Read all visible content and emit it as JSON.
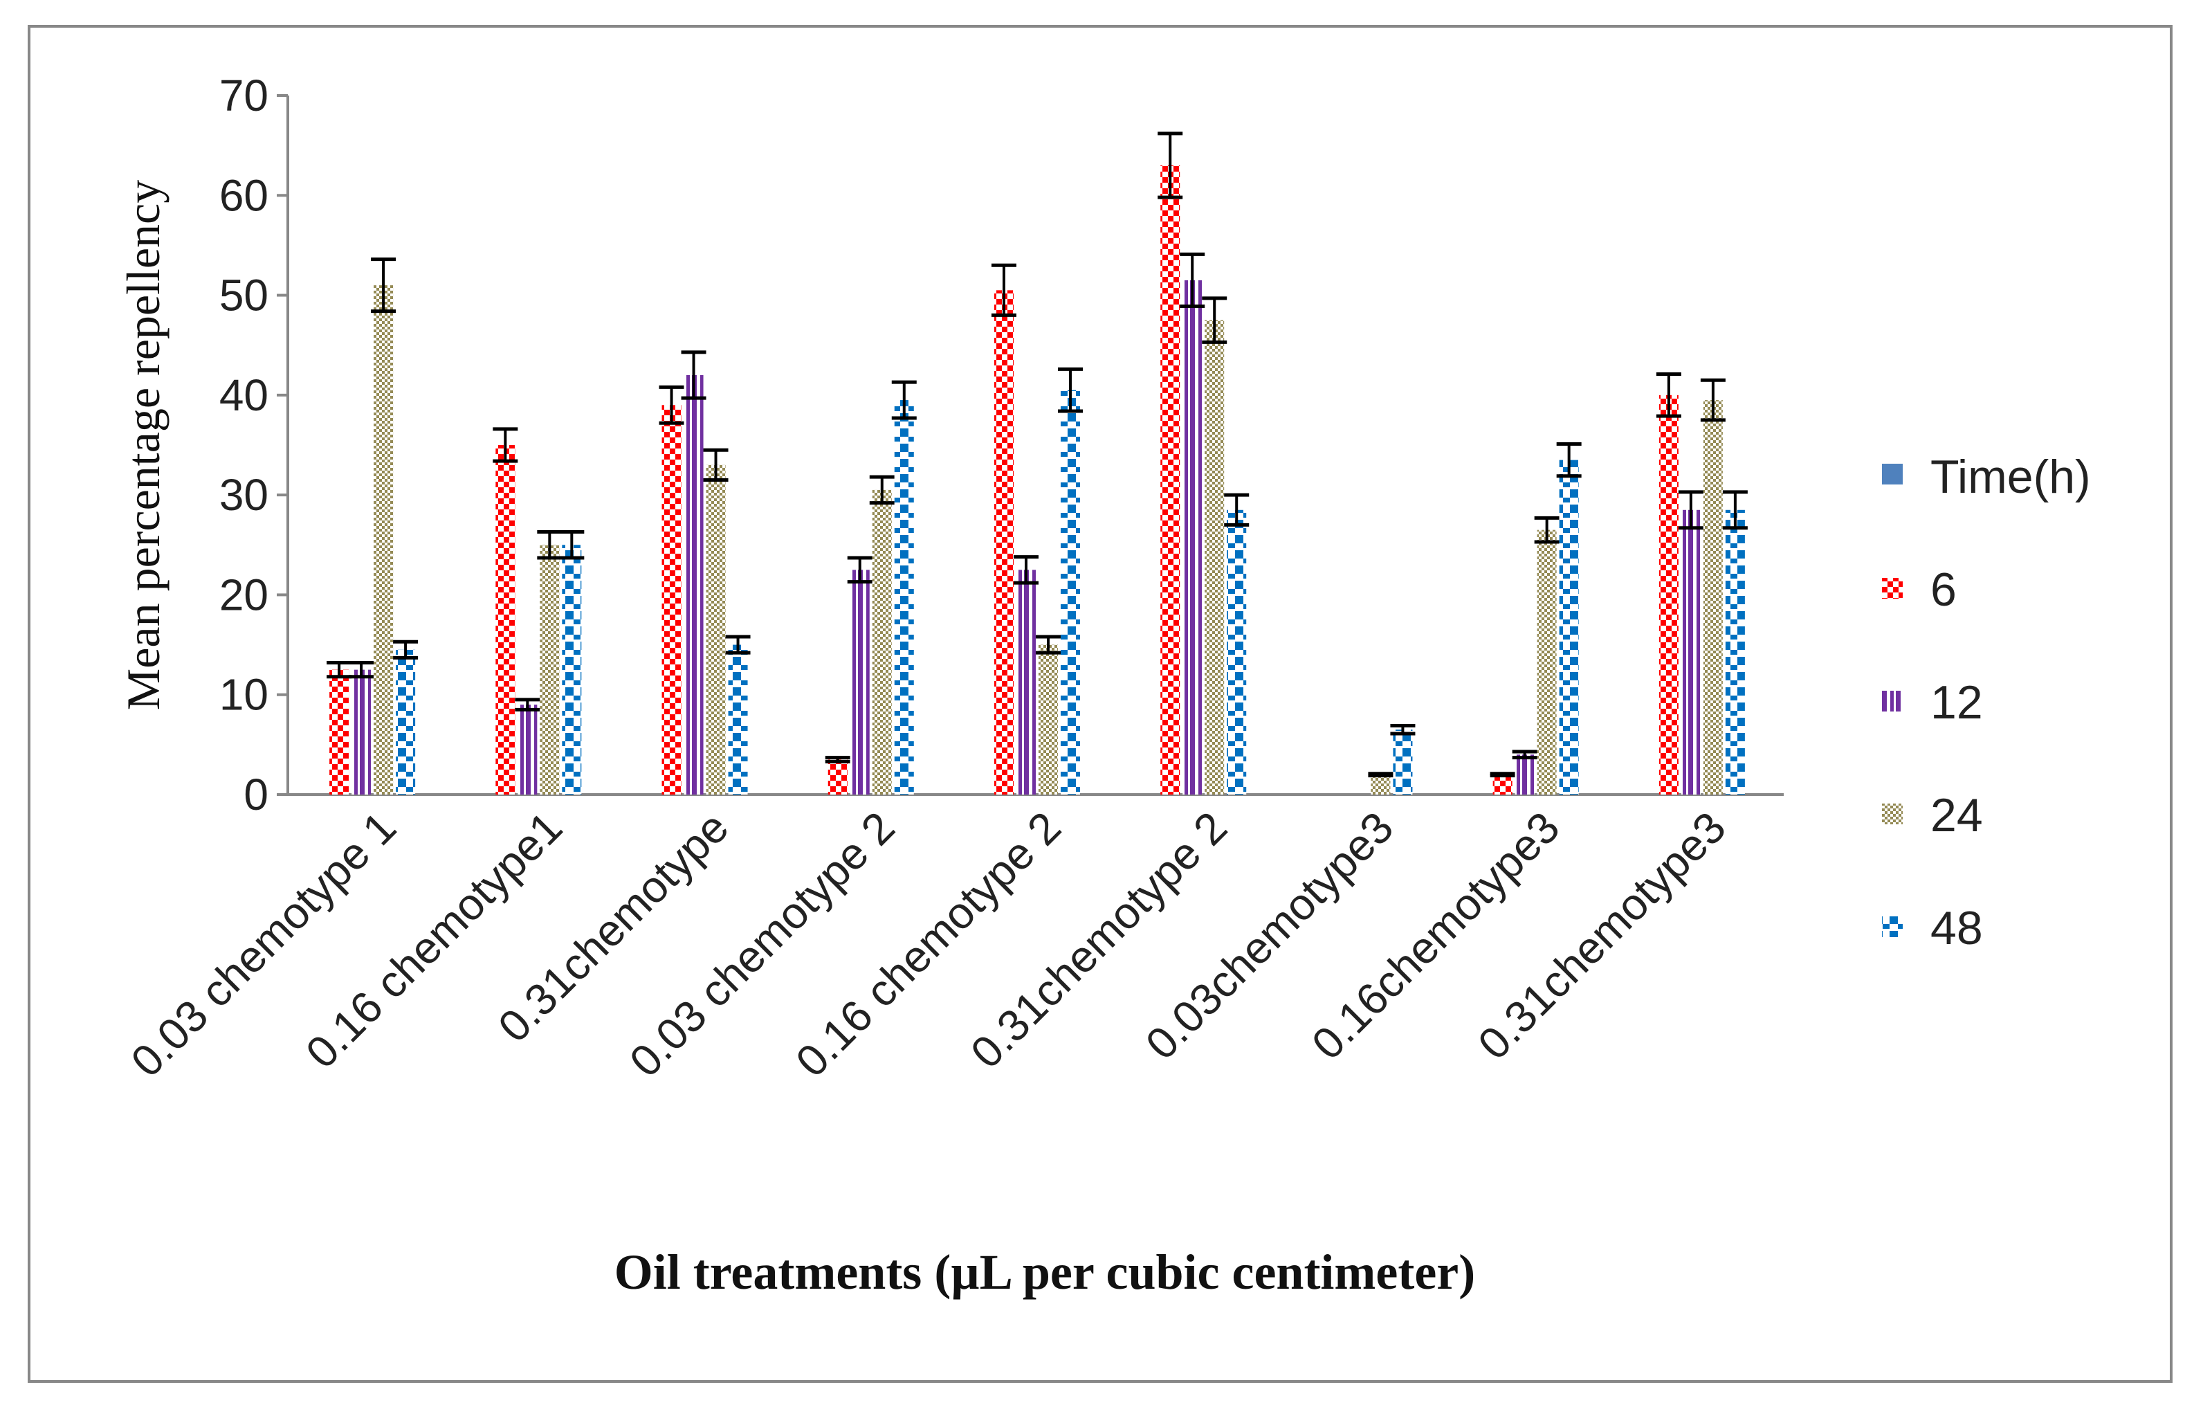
{
  "chart_data": {
    "type": "bar",
    "title": "",
    "xlabel": "Oil treatments (µL per cubic centimeter)",
    "ylabel": "Mean percentage repellency",
    "ylim": [
      0,
      70
    ],
    "yticks": [
      "0",
      "10",
      "20",
      "30",
      "40",
      "50",
      "60",
      "70"
    ],
    "grid": false,
    "legend_position": "right",
    "legend_title": "Time(h)",
    "categories": [
      "0.03 chemotype 1",
      "0.16 chemotype1",
      "0.31chemotype",
      "0.03 chemotype 2",
      "0.16 chemotype 2",
      "0.31chemotype 2",
      "0.03chemotype3",
      "0.16chemotype3",
      "0.31chemotype3"
    ],
    "series": [
      {
        "name": "6",
        "color": "#ff0000",
        "pattern": "checker",
        "values": [
          12.5,
          35,
          39,
          3.5,
          50.5,
          63,
          0,
          2,
          40
        ],
        "errors": [
          0.7,
          1.6,
          1.8,
          0.2,
          2.5,
          3.2,
          0,
          0.1,
          2.1
        ]
      },
      {
        "name": "12",
        "color": "#7030a0",
        "pattern": "vertical-lines",
        "values": [
          12.5,
          9,
          42,
          22.5,
          22.5,
          51.5,
          0,
          4,
          28.5
        ],
        "errors": [
          0.7,
          0.5,
          2.3,
          1.2,
          1.3,
          2.6,
          0,
          0.3,
          1.8
        ]
      },
      {
        "name": "24",
        "color": "#948a54",
        "pattern": "small-checker",
        "values": [
          51,
          25,
          33,
          30.5,
          15,
          47.5,
          2,
          26.5,
          39.5
        ],
        "errors": [
          2.6,
          1.3,
          1.5,
          1.3,
          0.8,
          2.2,
          0.1,
          1.2,
          2.0
        ]
      },
      {
        "name": "48",
        "color": "#0070c0",
        "pattern": "dots",
        "values": [
          14.5,
          25,
          15,
          39.5,
          40.5,
          28.5,
          6.5,
          33.5,
          28.5
        ],
        "errors": [
          0.8,
          1.3,
          0.8,
          1.8,
          2.1,
          1.5,
          0.4,
          1.6,
          1.8
        ]
      }
    ],
    "legend_title_color": "#4f81bd"
  }
}
